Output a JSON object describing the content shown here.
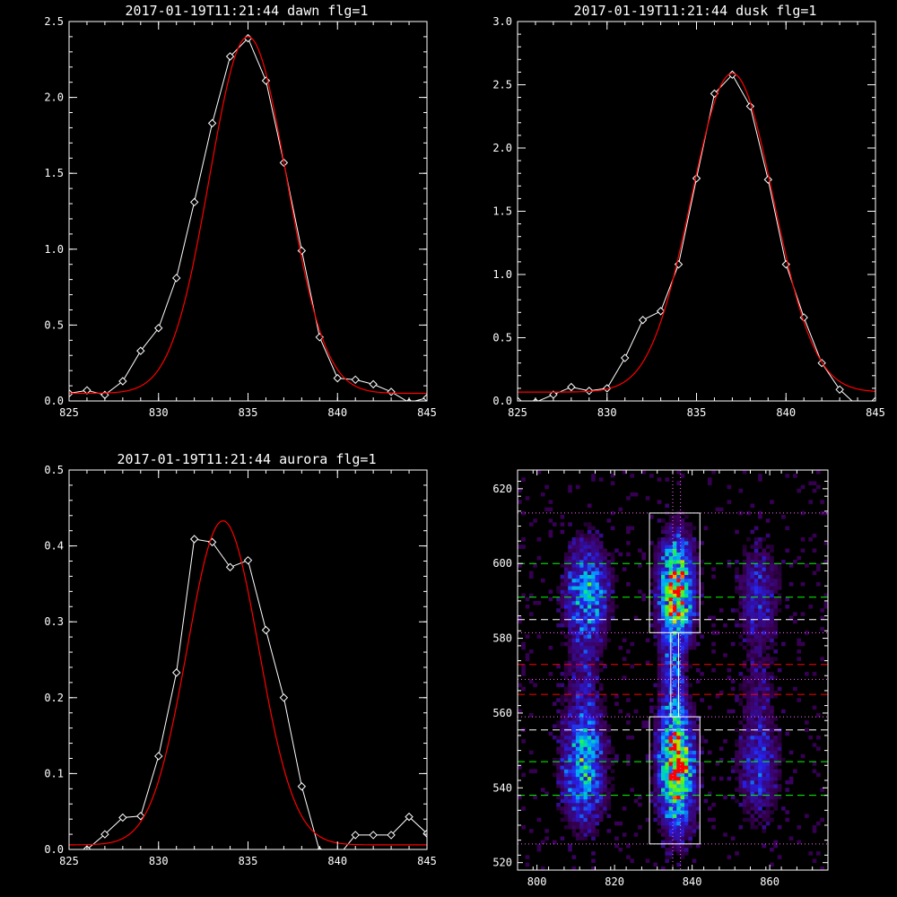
{
  "chart_data": [
    {
      "type": "line",
      "title": "2017-01-19T11:21:44 dawn flg=1",
      "xlim": [
        825,
        845
      ],
      "ylim": [
        0,
        2.5
      ],
      "xticks": [
        825,
        830,
        835,
        840,
        845
      ],
      "yticks": [
        0.0,
        0.5,
        1.0,
        1.5,
        2.0,
        2.5
      ],
      "ytick_labels": [
        "0.0",
        "0.5",
        "1.0",
        "1.5",
        "2.0",
        "2.5"
      ],
      "series": [
        {
          "color": "#ffffff",
          "marker": "diamond",
          "x": [
            825,
            826,
            827,
            828,
            829,
            830,
            831,
            832,
            833,
            834,
            835,
            836,
            837,
            838,
            839,
            840,
            841,
            842,
            843,
            844,
            845
          ],
          "y": [
            0.05,
            0.07,
            0.04,
            0.13,
            0.33,
            0.48,
            0.81,
            1.31,
            1.83,
            2.27,
            2.39,
            2.11,
            1.57,
            0.99,
            0.42,
            0.15,
            0.14,
            0.11,
            0.06,
            -0.01,
            0.02
          ]
        },
        {
          "color": "#ff0000",
          "fit": "gaussian",
          "amplitude": 2.35,
          "center": 835.0,
          "sigma": 2.15,
          "offset": 0.05
        }
      ]
    },
    {
      "type": "line",
      "title": "2017-01-19T11:21:44 dusk flg=1",
      "xlim": [
        825,
        845
      ],
      "ylim": [
        0,
        3.0
      ],
      "xticks": [
        825,
        830,
        835,
        840,
        845
      ],
      "yticks": [
        0.0,
        0.5,
        1.0,
        1.5,
        2.0,
        2.5,
        3.0
      ],
      "ytick_labels": [
        "0.0",
        "0.5",
        "1.0",
        "1.5",
        "2.0",
        "2.5",
        "3.0"
      ],
      "series": [
        {
          "color": "#ffffff",
          "marker": "diamond",
          "x": [
            825,
            826,
            827,
            828,
            829,
            830,
            831,
            832,
            833,
            834,
            835,
            836,
            837,
            838,
            839,
            840,
            841,
            842,
            843,
            844,
            845
          ],
          "y": [
            0.0,
            -0.01,
            0.05,
            0.11,
            0.08,
            0.1,
            0.34,
            0.64,
            0.71,
            1.08,
            1.76,
            2.43,
            2.58,
            2.33,
            1.75,
            1.08,
            0.66,
            0.3,
            0.09,
            -0.04,
            0.0
          ]
        },
        {
          "color": "#ff0000",
          "fit": "gaussian",
          "amplitude": 2.52,
          "center": 837.0,
          "sigma": 2.3,
          "offset": 0.07
        }
      ]
    },
    {
      "type": "line",
      "title": "2017-01-19T11:21:44 aurora flg=1",
      "xlim": [
        825,
        845
      ],
      "ylim": [
        0,
        0.5
      ],
      "xticks": [
        825,
        830,
        835,
        840,
        845
      ],
      "yticks": [
        0.0,
        0.1,
        0.2,
        0.3,
        0.4,
        0.5
      ],
      "ytick_labels": [
        "0.0",
        "0.1",
        "0.2",
        "0.3",
        "0.4",
        "0.5"
      ],
      "series": [
        {
          "color": "#ffffff",
          "marker": "diamond",
          "x": [
            825,
            826,
            827,
            828,
            829,
            830,
            831,
            832,
            833,
            834,
            835,
            836,
            837,
            838,
            839,
            840,
            841,
            842,
            843,
            844,
            845
          ],
          "y": [
            -0.02,
            0.0,
            0.02,
            0.042,
            0.044,
            0.123,
            0.233,
            0.409,
            0.405,
            0.372,
            0.381,
            0.289,
            0.2,
            0.083,
            -0.002,
            -0.01,
            0.019,
            0.019,
            0.019,
            0.043,
            0.021
          ]
        },
        {
          "color": "#ff0000",
          "fit": "gaussian",
          "amplitude": 0.427,
          "center": 833.6,
          "sigma": 2.0,
          "offset": 0.006
        }
      ]
    },
    {
      "type": "heatmap",
      "colormap": "rainbow-on-black",
      "xlim": [
        795,
        875
      ],
      "ylim": [
        518,
        625
      ],
      "xticks": [
        800,
        820,
        840,
        860
      ],
      "yticks": [
        520,
        540,
        560,
        580,
        600,
        620
      ],
      "blobs": [
        {
          "x": 813,
          "y": 593,
          "w": 3.5,
          "h": 8,
          "peak": 0.5
        },
        {
          "x": 812,
          "y": 545,
          "w": 3.5,
          "h": 9,
          "peak": 0.55
        },
        {
          "x": 836,
          "y": 593,
          "w": 2.8,
          "h": 9,
          "peak": 0.9
        },
        {
          "x": 836,
          "y": 545,
          "w": 2.8,
          "h": 10,
          "peak": 0.98
        },
        {
          "x": 835,
          "y": 569,
          "w": 2.0,
          "h": 12,
          "peak": 0.28
        },
        {
          "x": 857,
          "y": 593,
          "w": 3.5,
          "h": 8,
          "peak": 0.22
        },
        {
          "x": 857,
          "y": 545,
          "w": 3.5,
          "h": 9,
          "peak": 0.25
        },
        {
          "x": 812,
          "y": 569,
          "w": 3.0,
          "h": 12,
          "peak": 0.18
        },
        {
          "x": 857,
          "y": 569,
          "w": 3.0,
          "h": 12,
          "peak": 0.12
        }
      ],
      "boxes": [
        {
          "x0": 829,
          "x1": 842,
          "y0": 581.5,
          "y1": 613.5,
          "color": "#ffffff"
        },
        {
          "x0": 829,
          "x1": 842,
          "y0": 525,
          "y1": 559,
          "color": "#ffffff"
        },
        {
          "x0": 834.5,
          "x1": 836.5,
          "y0": 559,
          "y1": 581.5,
          "color": "#ffffff"
        }
      ],
      "hlines": [
        {
          "y": 613.5,
          "color": "#ff66ff",
          "style": "dotted"
        },
        {
          "y": 600,
          "color": "#00ff00",
          "style": "dashed"
        },
        {
          "y": 591,
          "color": "#00ff00",
          "style": "dashed"
        },
        {
          "y": 585,
          "color": "#ffffff",
          "style": "dashed"
        },
        {
          "y": 581.5,
          "color": "#ff66ff",
          "style": "dotted"
        },
        {
          "y": 573,
          "color": "#ff0000",
          "style": "dashed"
        },
        {
          "y": 569,
          "color": "#ff66ff",
          "style": "dotted"
        },
        {
          "y": 565,
          "color": "#ff0000",
          "style": "dashed"
        },
        {
          "y": 559,
          "color": "#ff66ff",
          "style": "dotted"
        },
        {
          "y": 555.5,
          "color": "#ffffff",
          "style": "dashed"
        },
        {
          "y": 547,
          "color": "#00ff00",
          "style": "dashed"
        },
        {
          "y": 538,
          "color": "#00ff00",
          "style": "dashed"
        },
        {
          "y": 525,
          "color": "#ff66ff",
          "style": "dotted"
        }
      ],
      "vlines": [
        {
          "x": 835,
          "color": "#ff66ff",
          "style": "dotted"
        },
        {
          "x": 837,
          "color": "#ff66ff",
          "style": "dotted"
        }
      ]
    }
  ]
}
